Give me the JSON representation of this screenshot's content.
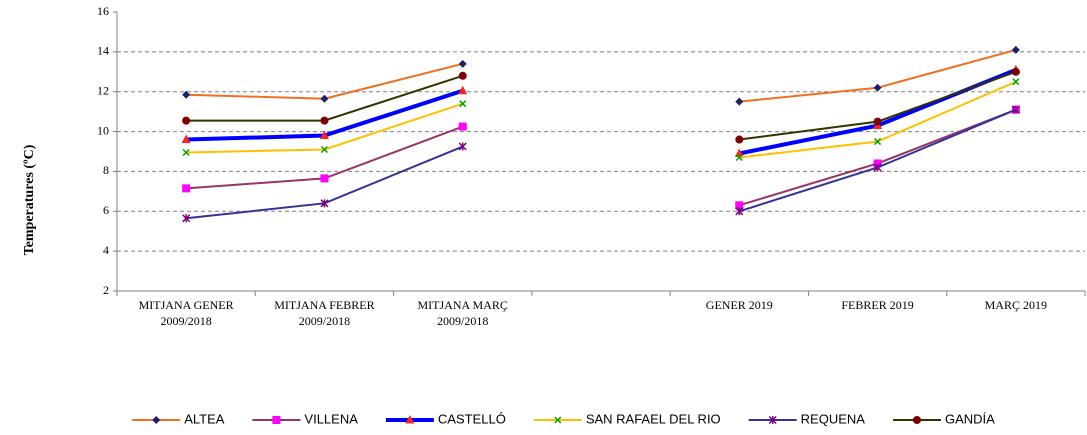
{
  "chart_data": {
    "type": "line",
    "y_label": "Temperatures  (ºC)",
    "categories": [
      "MITJANA GENER 2009/2018",
      "MITJANA FEBRER 2009/2018",
      "MITJANA MARÇ 2009/2018",
      null,
      "GENER 2019",
      "FEBRER 2019",
      "MARÇ 2019"
    ],
    "series": [
      {
        "name": "ALTEA",
        "color": "#f07020",
        "marker": "diamond",
        "marker_color": "#1f1f6f",
        "line_width": 2,
        "values": [
          11.85,
          11.65,
          13.4,
          null,
          11.5,
          12.2,
          14.1
        ]
      },
      {
        "name": "VILLENA",
        "color": "#993366",
        "marker": "square",
        "marker_color": "#ff00ff",
        "line_width": 2,
        "values": [
          7.15,
          7.65,
          10.25,
          null,
          6.3,
          8.4,
          11.1
        ]
      },
      {
        "name": "CASTELLÓ",
        "color": "#0000ff",
        "marker": "triangle",
        "marker_color": "#ff2020",
        "line_width": 4,
        "values": [
          9.6,
          9.8,
          12.05,
          null,
          8.9,
          10.3,
          13.1
        ]
      },
      {
        "name": "SAN RAFAEL DEL RIO",
        "color": "#ffc000",
        "marker": "x",
        "marker_color": "#00a000",
        "line_width": 2,
        "values": [
          8.95,
          9.1,
          11.4,
          null,
          8.7,
          9.5,
          12.5
        ]
      },
      {
        "name": "REQUENA",
        "color": "#333399",
        "marker": "star",
        "marker_color": "#800080",
        "line_width": 2,
        "values": [
          5.65,
          6.4,
          9.25,
          null,
          6.0,
          8.2,
          11.1
        ]
      },
      {
        "name": "GANDÍA",
        "color": "#333300",
        "marker": "circle",
        "marker_color": "#800000",
        "line_width": 2,
        "values": [
          10.55,
          10.55,
          12.8,
          null,
          9.6,
          10.5,
          13.0
        ]
      }
    ],
    "ylim": [
      2,
      16
    ],
    "yticks": [
      2,
      4,
      6,
      8,
      10,
      12,
      14,
      16
    ],
    "grid": true,
    "legend": "bottom"
  }
}
